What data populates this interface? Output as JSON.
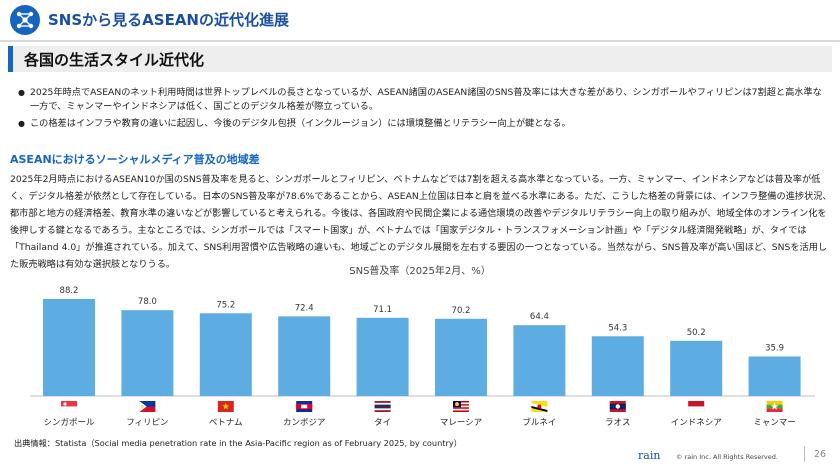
{
  "header": {
    "title": "SNSから見るASEANの近代化進展",
    "icon": "network-icon",
    "accent_color": "#1565c0"
  },
  "section": {
    "title": "各国の生活スタイル近代化"
  },
  "bullets": [
    "2025年時点でASEANのネット利用時間は世界トップレベルの長さとなっているが、ASEAN諸国のASEAN諸国のSNS普及率には大きな差があり、シンガポールやフィリピンは7割超と高水準な一方で、ミャンマーやインドネシアは低く、国ごとのデジタル格差が際立っている。",
    "この格差はインフラや教育の違いに起因し、今後のデジタル包摂（インクルージョン）には環境整備とリテラシー向上が鍵となる。"
  ],
  "subsection": {
    "title": "ASEANにおけるソーシャルメディア普及の地域差",
    "body": "2025年2月時点におけるASEAN10か国のSNS普及率を見ると、シンガポールとフィリピン、ベトナムなどでは7割を超える高水準となっている。一方、ミャンマー、インドネシアなどは普及率が低く、デジタル格差が依然として存在している。日本のSNS普及率が78.6%であることから、ASEAN上位国は日本と肩を並べる水準にある。ただ、こうした格差の背景には、インフラ整備の進捗状況、都市部と地方の経済格差、教育水準の違いなどが影響していると考えられる。今後は、各国政府や民間企業による通信環境の改善やデジタルリテラシー向上の取り組みが、地域全体のオンライン化を後押しする鍵となるであろう。主なところでは、シンガポールでは「スマート国家」が、ベトナムでは「国家デジタル・トランスフォメーション計画」や「デジタル経済開発戦略」が、タイでは「Thailand 4.0」が推進されている。加えて、SNS利用習慣や広告戦略の違いも、地域ごとのデジタル展開を左右する要因の一つとなっている。当然ながら、SNS普及率が高い国ほど、SNSを活用した販売戦略は有効な選択肢となりうる。"
  },
  "chart_data": {
    "type": "bar",
    "title": "SNS普及率（2025年2月、%）",
    "categories": [
      "シンガポール",
      "フィリピン",
      "ベトナム",
      "カンボジア",
      "タイ",
      "マレーシア",
      "ブルネイ",
      "ラオス",
      "インドネシア",
      "ミャンマー"
    ],
    "values": [
      88.2,
      78.0,
      75.2,
      72.4,
      71.1,
      70.2,
      64.4,
      54.3,
      50.2,
      35.9
    ],
    "flags": [
      "singapore-flag-icon",
      "philippines-flag-icon",
      "vietnam-flag-icon",
      "cambodia-flag-icon",
      "thailand-flag-icon",
      "malaysia-flag-icon",
      "brunei-flag-icon",
      "laos-flag-icon",
      "indonesia-flag-icon",
      "myanmar-flag-icon"
    ],
    "ylim": [
      0,
      100
    ],
    "bar_color": "#5dade2",
    "grid": false,
    "legend": "none"
  },
  "source": "出典情報：Statista（Social media penetration rate in the Asia-Pacific region as of February 2025, by country）",
  "footer": {
    "logo": "rain",
    "copyright": "© rain Inc. All Rights Reserved.",
    "page": "26"
  }
}
